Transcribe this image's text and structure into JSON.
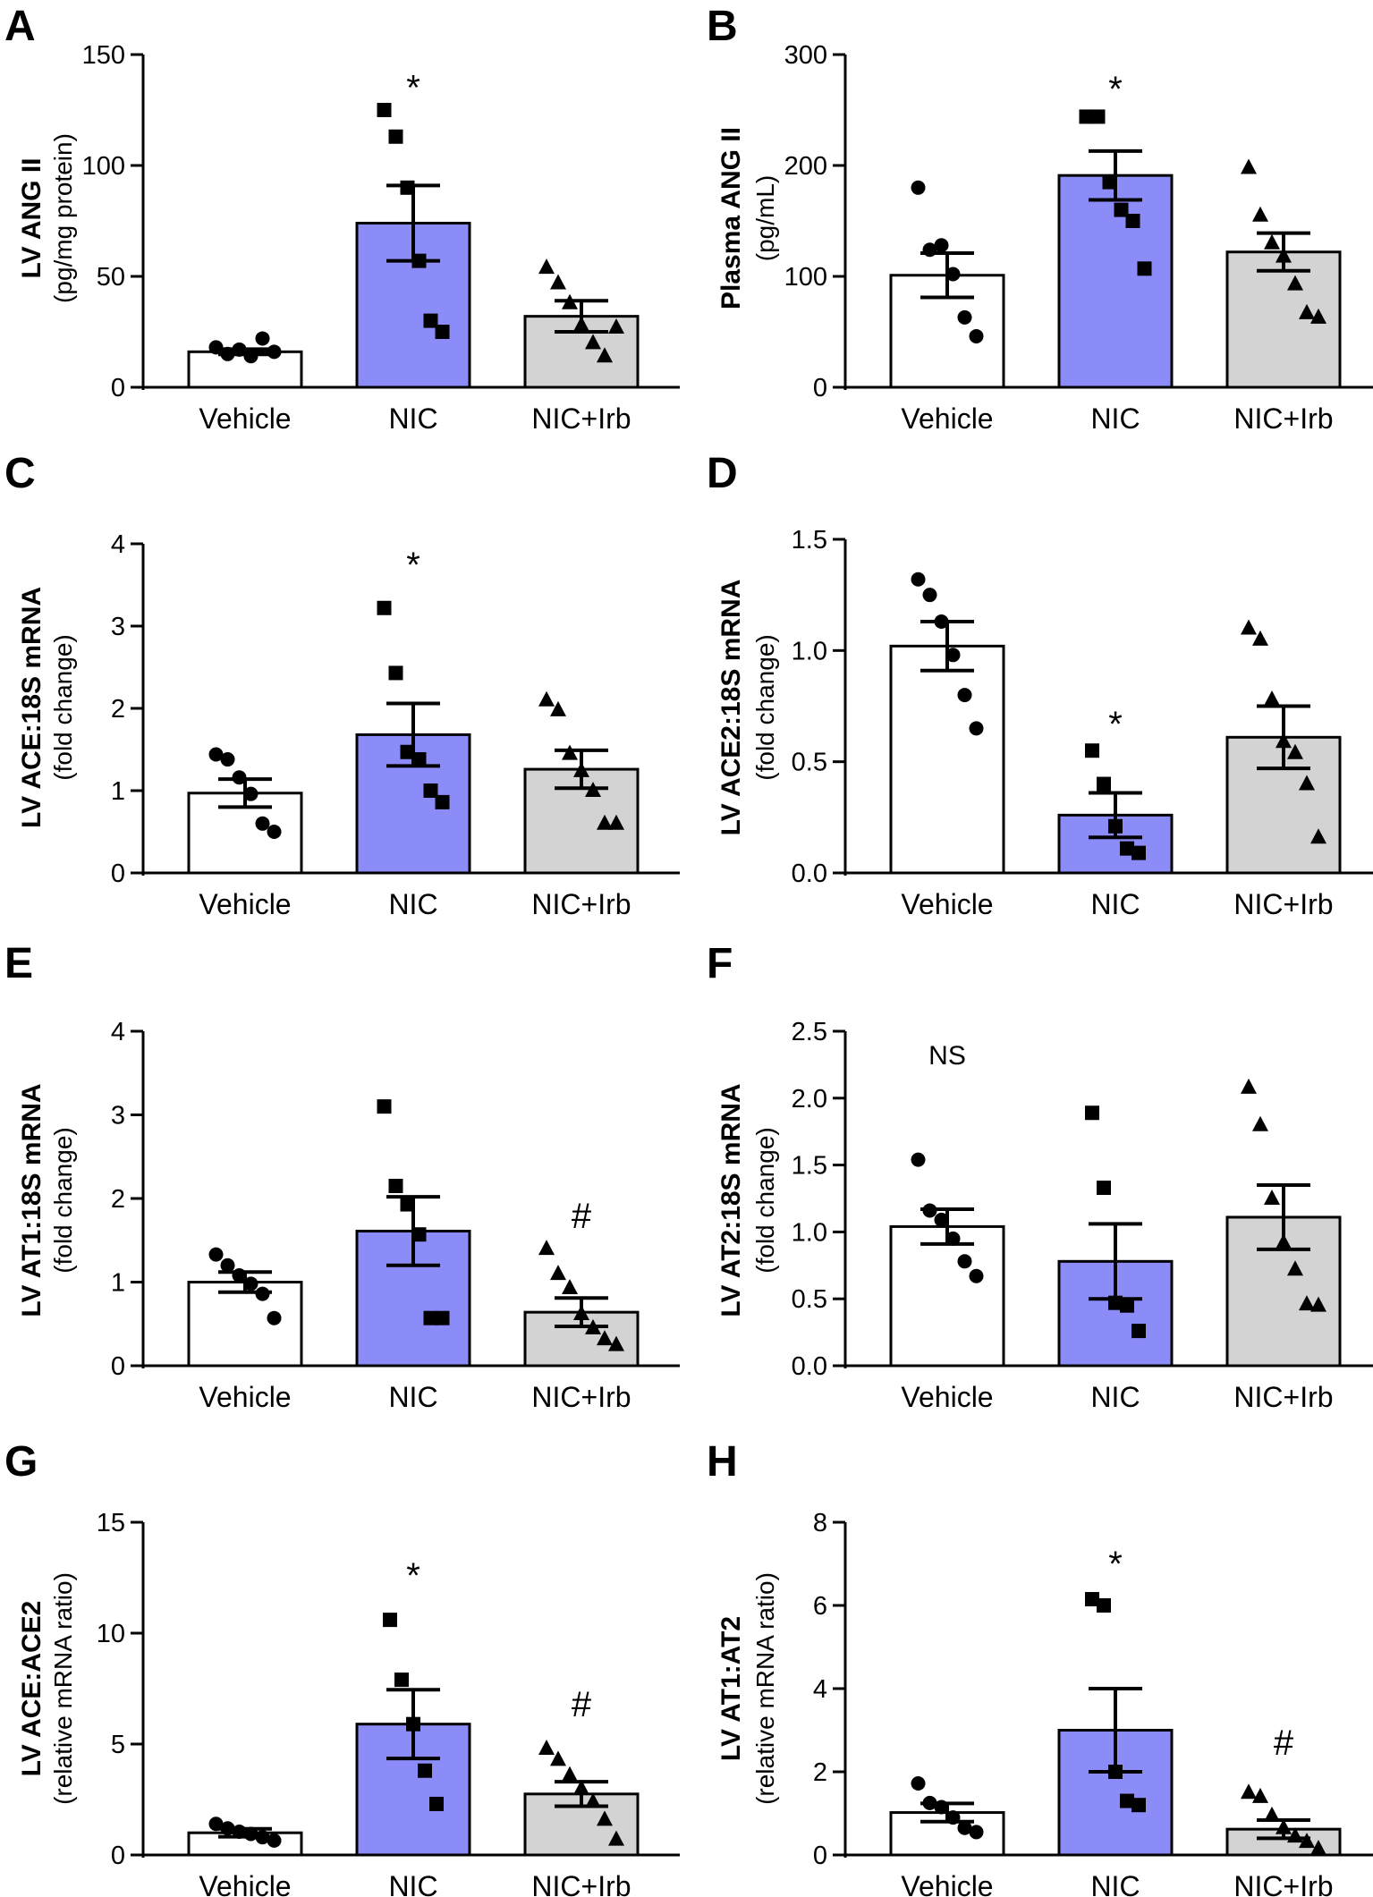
{
  "figure": {
    "colors": {
      "vehicle_fill": "#ffffff",
      "nic_fill": "#8c8cf8",
      "nicirb_fill": "#d3d3d3",
      "stroke": "#000000"
    }
  },
  "chart_data": [
    {
      "panel": "A",
      "type": "bar",
      "ylabel": "LV ANG II",
      "ylabel_sub": "(pg/mg protein)",
      "ylim": [
        0,
        150
      ],
      "yticks": [
        0,
        50,
        100,
        150
      ],
      "ytick_labels": [
        "0",
        "50",
        "100",
        "150"
      ],
      "categories": [
        "Vehicle",
        "NIC",
        "NIC+Irb"
      ],
      "means": [
        16,
        74,
        32
      ],
      "sem": [
        1.2,
        17,
        7
      ],
      "points": [
        [
          18,
          15,
          17,
          14,
          22,
          16
        ],
        [
          125,
          113,
          90,
          57,
          30,
          25
        ],
        [
          54,
          47,
          38,
          28,
          20,
          14,
          27
        ]
      ],
      "markers": [
        "circle",
        "square",
        "triangle"
      ],
      "annotations": [
        {
          "group": 1,
          "text": "*",
          "y": 136
        }
      ]
    },
    {
      "panel": "B",
      "type": "bar",
      "ylabel": "Plasma ANG II",
      "ylabel_sub": "(pg/mL)",
      "ylim": [
        0,
        300
      ],
      "yticks": [
        0,
        100,
        200,
        300
      ],
      "ytick_labels": [
        "0",
        "100",
        "200",
        "300"
      ],
      "categories": [
        "Vehicle",
        "NIC",
        "NIC+Irb"
      ],
      "means": [
        101,
        191,
        122
      ],
      "sem": [
        20,
        22,
        17
      ],
      "points": [
        [
          180,
          124,
          128,
          102,
          63,
          46
        ],
        [
          244,
          244,
          185,
          160,
          150,
          107
        ],
        [
          198,
          155,
          130,
          118,
          93,
          67,
          63
        ]
      ],
      "markers": [
        "circle",
        "square",
        "triangle"
      ],
      "annotations": [
        {
          "group": 1,
          "text": "*",
          "y": 271
        }
      ]
    },
    {
      "panel": "C",
      "type": "bar",
      "ylabel": "LV ACE:18S mRNA",
      "ylabel_sub": "(fold change)",
      "ylim": [
        0,
        4
      ],
      "yticks": [
        0,
        1,
        2,
        3,
        4
      ],
      "ytick_labels": [
        "0",
        "1",
        "2",
        "3",
        "4"
      ],
      "categories": [
        "Vehicle",
        "NIC",
        "NIC+Irb"
      ],
      "means": [
        0.97,
        1.68,
        1.26
      ],
      "sem": [
        0.17,
        0.38,
        0.23
      ],
      "points": [
        [
          1.44,
          1.38,
          1.16,
          0.96,
          0.6,
          0.5
        ],
        [
          3.22,
          2.43,
          1.47,
          1.38,
          1.0,
          0.86
        ],
        [
          2.1,
          1.98,
          1.45,
          1.24,
          1.0,
          0.6,
          0.6
        ]
      ],
      "markers": [
        "circle",
        "square",
        "triangle"
      ],
      "annotations": [
        {
          "group": 1,
          "text": "*",
          "y": 3.77
        }
      ]
    },
    {
      "panel": "D",
      "type": "bar",
      "ylabel": "LV ACE2:18S mRNA",
      "ylabel_sub": "(fold change)",
      "ylim": [
        0,
        1.5
      ],
      "yticks": [
        0,
        0.5,
        1.0,
        1.5
      ],
      "ytick_labels": [
        "0.0",
        "0.5",
        "1.0",
        "1.5"
      ],
      "categories": [
        "Vehicle",
        "NIC",
        "NIC+Irb"
      ],
      "means": [
        1.02,
        0.26,
        0.61
      ],
      "sem": [
        0.11,
        0.1,
        0.14
      ],
      "points": [
        [
          1.32,
          1.25,
          1.13,
          0.98,
          0.8,
          0.65
        ],
        [
          0.55,
          0.4,
          0.21,
          0.11,
          0.09
        ],
        [
          1.1,
          1.05,
          0.78,
          0.59,
          0.54,
          0.4,
          0.16
        ]
      ],
      "markers": [
        "circle",
        "square",
        "triangle"
      ],
      "annotations": [
        {
          "group": 1,
          "text": "*",
          "y": 0.68
        }
      ]
    },
    {
      "panel": "E",
      "type": "bar",
      "ylabel": "LV AT1:18S mRNA",
      "ylabel_sub": "(fold change)",
      "ylim": [
        0,
        4
      ],
      "yticks": [
        0,
        1,
        2,
        3,
        4
      ],
      "ytick_labels": [
        "0",
        "1",
        "2",
        "3",
        "4"
      ],
      "categories": [
        "Vehicle",
        "NIC",
        "NIC+Irb"
      ],
      "means": [
        1.0,
        1.61,
        0.64
      ],
      "sem": [
        0.12,
        0.41,
        0.17
      ],
      "points": [
        [
          1.33,
          1.2,
          1.08,
          0.98,
          0.86,
          0.57
        ],
        [
          3.1,
          2.15,
          1.93,
          1.57,
          0.57,
          0.57
        ],
        [
          1.4,
          1.1,
          0.93,
          0.62,
          0.45,
          0.32,
          0.25
        ]
      ],
      "markers": [
        "circle",
        "square",
        "triangle"
      ],
      "annotations": [
        {
          "group": 2,
          "text": "#",
          "y": 1.82
        }
      ]
    },
    {
      "panel": "F",
      "type": "bar",
      "ylabel": "LV AT2:18S mRNA",
      "ylabel_sub": "(fold change)",
      "ylim": [
        0,
        2.5
      ],
      "yticks": [
        0,
        0.5,
        1.0,
        1.5,
        2.0,
        2.5
      ],
      "ytick_labels": [
        "0.0",
        "0.5",
        "1.0",
        "1.5",
        "2.0",
        "2.5"
      ],
      "categories": [
        "Vehicle",
        "NIC",
        "NIC+Irb"
      ],
      "means": [
        1.04,
        0.78,
        1.11
      ],
      "sem": [
        0.13,
        0.28,
        0.24
      ],
      "points": [
        [
          1.54,
          1.16,
          1.09,
          0.95,
          0.78,
          0.67
        ],
        [
          1.89,
          1.33,
          0.47,
          0.45,
          0.26
        ],
        [
          2.08,
          1.8,
          1.25,
          0.92,
          0.72,
          0.46,
          0.45
        ]
      ],
      "markers": [
        "circle",
        "square",
        "triangle"
      ],
      "annotations": [
        {
          "group": 0,
          "text": "NS",
          "y": 2.32
        }
      ]
    },
    {
      "panel": "G",
      "type": "bar",
      "ylabel": "LV ACE:ACE2",
      "ylabel_sub": "(relative mRNA ratio)",
      "ylim": [
        0,
        15
      ],
      "yticks": [
        0,
        5,
        10,
        15
      ],
      "ytick_labels": [
        "0",
        "5",
        "10",
        "15"
      ],
      "categories": [
        "Vehicle",
        "NIC",
        "NIC+Irb"
      ],
      "means": [
        1.0,
        5.9,
        2.75
      ],
      "sem": [
        0.18,
        1.55,
        0.55
      ],
      "points": [
        [
          1.4,
          1.2,
          1.05,
          0.95,
          0.8,
          0.65
        ],
        [
          10.6,
          7.9,
          5.9,
          3.8,
          2.3
        ],
        [
          4.8,
          4.3,
          3.6,
          3.0,
          2.4,
          1.6,
          0.7
        ]
      ],
      "markers": [
        "circle",
        "square",
        "triangle"
      ],
      "annotations": [
        {
          "group": 1,
          "text": "*",
          "y": 12.7
        },
        {
          "group": 2,
          "text": "#",
          "y": 6.9
        }
      ]
    },
    {
      "panel": "H",
      "type": "bar",
      "ylabel": "LV AT1:AT2",
      "ylabel_sub": "(relative mRNA ratio)",
      "ylim": [
        0,
        8
      ],
      "yticks": [
        0,
        2,
        4,
        6,
        8
      ],
      "ytick_labels": [
        "0",
        "2",
        "4",
        "6",
        "8"
      ],
      "categories": [
        "Vehicle",
        "NIC",
        "NIC+Irb"
      ],
      "means": [
        1.02,
        3.0,
        0.62
      ],
      "sem": [
        0.22,
        1.0,
        0.22
      ],
      "points": [
        [
          1.72,
          1.25,
          1.15,
          0.9,
          0.65,
          0.55
        ],
        [
          6.15,
          6.0,
          2.0,
          1.3,
          1.2
        ],
        [
          1.5,
          1.4,
          0.95,
          0.65,
          0.45,
          0.32,
          0.15
        ]
      ],
      "markers": [
        "circle",
        "square",
        "triangle"
      ],
      "annotations": [
        {
          "group": 1,
          "text": "*",
          "y": 7.05
        },
        {
          "group": 2,
          "text": "#",
          "y": 2.75
        }
      ]
    }
  ]
}
